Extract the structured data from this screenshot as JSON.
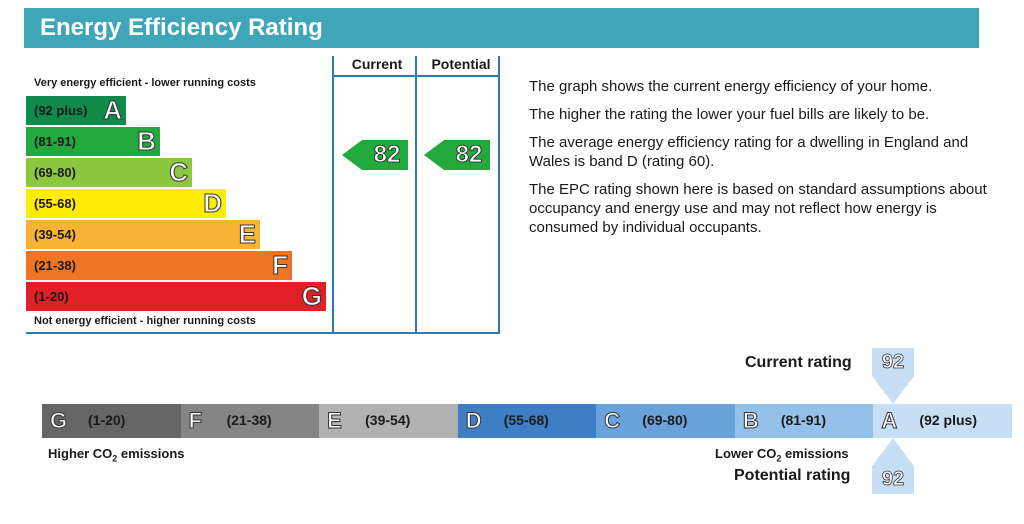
{
  "header": {
    "title": "Energy Efficiency Rating"
  },
  "chart_data": [
    {
      "type": "bar",
      "title": "Energy Efficiency Rating",
      "top_caption": "Very energy efficient - lower running costs",
      "bottom_caption": "Not energy efficient - higher running costs",
      "columns": [
        "Current",
        "Potential"
      ],
      "bands": [
        {
          "letter": "A",
          "range": "(92 plus)",
          "color": "#0f8a4a"
        },
        {
          "letter": "B",
          "range": "(81-91)",
          "color": "#23a93b"
        },
        {
          "letter": "C",
          "range": "(69-80)",
          "color": "#8dc63f"
        },
        {
          "letter": "D",
          "range": "(55-68)",
          "color": "#ffec00"
        },
        {
          "letter": "E",
          "range": "(39-54)",
          "color": "#f8b334"
        },
        {
          "letter": "F",
          "range": "(21-38)",
          "color": "#ee7523"
        },
        {
          "letter": "G",
          "range": "(1-20)",
          "color": "#e01f26"
        }
      ],
      "current": 82,
      "potential": 82,
      "arrow_color": "#23a93b"
    },
    {
      "type": "bar",
      "bands": [
        {
          "letter": "G",
          "range": "(1-20)",
          "color": "#666666"
        },
        {
          "letter": "F",
          "range": "(21-38)",
          "color": "#858585"
        },
        {
          "letter": "E",
          "range": "(39-54)",
          "color": "#b1b1b1"
        },
        {
          "letter": "D",
          "range": "(55-68)",
          "color": "#3d7ec4"
        },
        {
          "letter": "C",
          "range": "(69-80)",
          "color": "#6aa3dc"
        },
        {
          "letter": "B",
          "range": "(81-91)",
          "color": "#94c0ea"
        },
        {
          "letter": "A",
          "range": "(92 plus)",
          "color": "#c7dff5"
        }
      ],
      "left_caption_html": "Higher CO<sub>2</sub> emissions",
      "right_caption_html": "Lower CO<sub>2</sub> emissions",
      "current_label": "Current rating",
      "potential_label": "Potential rating",
      "current": 92,
      "potential": 92,
      "marker_color": "#c7dff5"
    }
  ],
  "notes": [
    "The graph shows the current energy efficiency of your home.",
    "The higher the rating the lower your fuel bills are likely to be.",
    "The average energy efficiency rating for a dwelling in England and Wales is band D (rating 60).",
    "The EPC rating shown here is based on standard assumptions about occupancy and energy use and may not reflect how energy is consumed by individual occupants."
  ]
}
